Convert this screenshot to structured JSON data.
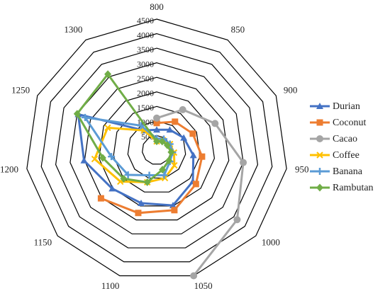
{
  "chart_data": {
    "type": "radar",
    "categories": [
      "800",
      "850",
      "900",
      "950",
      "1000",
      "1050",
      "1100",
      "1150",
      "1200",
      "1250",
      "1300"
    ],
    "rlim": [
      0,
      4500
    ],
    "rticks": [
      500,
      1000,
      1500,
      2000,
      2500,
      3000,
      3500,
      4000,
      4500
    ],
    "legend": "right",
    "series": [
      {
        "name": "Durian",
        "color": "#4472c4",
        "marker": "triangle",
        "values": [
          700,
          830,
          1020,
          1270,
          1640,
          1980,
          1900,
          2020,
          2520,
          2960,
          800
        ]
      },
      {
        "name": "Coconut",
        "color": "#ed7d31",
        "marker": "square",
        "values": [
          930,
          1160,
          1360,
          1570,
          1780,
          2150,
          2250,
          2530,
          null,
          null,
          null
        ]
      },
      {
        "name": "Cacao",
        "color": "#a5a5a5",
        "marker": "circle",
        "values": [
          1100,
          1650,
          2200,
          3000,
          3650,
          4500,
          null,
          null,
          null,
          null,
          null
        ]
      },
      {
        "name": "Coffee",
        "color": "#ffc000",
        "marker": "x",
        "values": [
          300,
          400,
          500,
          600,
          800,
          1000,
          1150,
          1650,
          2150,
          1850,
          800
        ]
      },
      {
        "name": "Banana",
        "color": "#5b9bd5",
        "marker": "plus",
        "values": [
          400,
          450,
          500,
          550,
          600,
          900,
          900,
          1300,
          1570,
          2700,
          1000
        ]
      },
      {
        "name": "Rambutan",
        "color": "#70ad47",
        "marker": "diamond",
        "values": [
          300,
          350,
          400,
          500,
          550,
          700,
          1150,
          1500,
          1870,
          3000,
          3100
        ]
      }
    ]
  }
}
